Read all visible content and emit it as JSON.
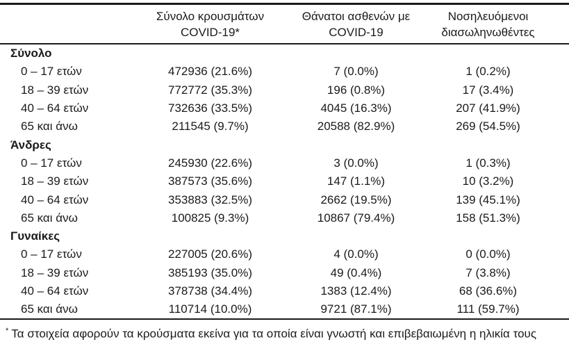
{
  "table": {
    "columns": [
      {
        "key": "cases",
        "line1": "Σύνολο κρουσμάτων",
        "line2": "COVID-19*"
      },
      {
        "key": "deaths",
        "line1": "Θάνατοι ασθενών με",
        "line2": "COVID-19"
      },
      {
        "key": "intubated",
        "line1": "Νοσηλευόμενοι",
        "line2": "διασωληνωθέντες"
      }
    ],
    "sections": [
      {
        "label": "Σύνολο",
        "rows": [
          {
            "age": "0 – 17 ετών",
            "cases": "472936 (21.6%)",
            "deaths": "7 (0.0%)",
            "intubated": "1 (0.2%)"
          },
          {
            "age": "18 – 39 ετών",
            "cases": "772772 (35.3%)",
            "deaths": "196 (0.8%)",
            "intubated": "17 (3.4%)"
          },
          {
            "age": "40 – 64 ετών",
            "cases": "732636 (33.5%)",
            "deaths": "4045 (16.3%)",
            "intubated": "207 (41.9%)"
          },
          {
            "age": "65 και άνω",
            "cases": "211545 (9.7%)",
            "deaths": "20588 (82.9%)",
            "intubated": "269 (54.5%)"
          }
        ]
      },
      {
        "label": "Άνδρες",
        "rows": [
          {
            "age": "0 – 17 ετών",
            "cases": "245930 (22.6%)",
            "deaths": "3 (0.0%)",
            "intubated": "1 (0.3%)"
          },
          {
            "age": "18 – 39 ετών",
            "cases": "387573 (35.6%)",
            "deaths": "147 (1.1%)",
            "intubated": "10 (3.2%)"
          },
          {
            "age": "40 – 64 ετών",
            "cases": "353883 (32.5%)",
            "deaths": "2662 (19.5%)",
            "intubated": "139 (45.1%)"
          },
          {
            "age": "65 και άνω",
            "cases": "100825 (9.3%)",
            "deaths": "10867 (79.4%)",
            "intubated": "158 (51.3%)"
          }
        ]
      },
      {
        "label": "Γυναίκες",
        "rows": [
          {
            "age": "0 – 17 ετών",
            "cases": "227005 (20.6%)",
            "deaths": "4 (0.0%)",
            "intubated": "0 (0.0%)"
          },
          {
            "age": "18 – 39 ετών",
            "cases": "385193 (35.0%)",
            "deaths": "49 (0.4%)",
            "intubated": "7 (3.8%)"
          },
          {
            "age": "40 – 64 ετών",
            "cases": "378738 (34.4%)",
            "deaths": "1383 (12.4%)",
            "intubated": "68 (36.6%)"
          },
          {
            "age": "65 και άνω",
            "cases": "110714 (10.0%)",
            "deaths": "9721 (87.1%)",
            "intubated": "111 (59.7%)"
          }
        ]
      }
    ]
  },
  "footnote": {
    "marker": "*",
    "text": "Τα στοιχεία αφορούν τα κρούσματα εκείνα για τα οποία είναι γνωστή και επιβεβαιωμένη η ηλικία τους"
  },
  "colors": {
    "text": "#1a1a1a",
    "rule": "#1a1a1a",
    "background": "#ffffff"
  }
}
